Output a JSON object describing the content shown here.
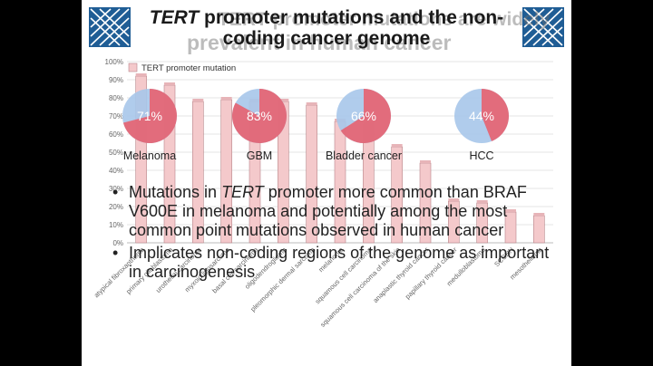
{
  "slide": {
    "title_italic": "TERT",
    "title_line1_rest": " promoter mutations and the non-",
    "title_line2": "coding cancer genome",
    "ghost_line1": "TERT promoter mutations are widely",
    "ghost_line2": "prevalent in human cancer",
    "bullets": [
      {
        "pre": "Mutations in ",
        "italic": "TERT",
        "post": " promoter more common than BRAF V600E in melanoma and potentially among the most common point mutations observed in human cancer"
      },
      {
        "pre": "Implicates non-coding regions of the genome as important in carcinogenesis",
        "italic": "",
        "post": ""
      }
    ],
    "bullet_symbol": "•"
  },
  "chart_data": {
    "type": "bar",
    "legend": "TERT promoter mutation",
    "categories": [
      "atypical fibroxanthoma",
      "primary glioblastoma",
      "urothelial carcinoma",
      "myxoid liposarcoma",
      "basal cell carcinoma",
      "oligodendroglioma",
      "pleomorphic dermal sarcoma",
      "melanoma",
      "squamous cell carcinoma",
      "squamous cell carcinoma of the skin",
      "anaplastic thyroid cancer",
      "papillary thyroid cancer",
      "medulloblastoma",
      "SCCHN",
      "mesothelioma"
    ],
    "values": [
      92,
      87,
      78,
      79,
      78,
      78,
      76,
      67,
      65,
      53,
      44,
      23,
      22,
      17,
      15
    ],
    "y_ticks": [
      "0%",
      "10%",
      "20%",
      "30%",
      "40%",
      "50%",
      "60%",
      "70%",
      "80%",
      "90%",
      "100%"
    ],
    "ylim": [
      0,
      100
    ],
    "colors": {
      "bar": "#f4c9cb",
      "bar_edge": "#b9868a",
      "pie_mut": "#e85f6c",
      "pie_rest": "#a7c7ea",
      "grid": "#dcdcdc"
    },
    "pies": [
      {
        "label": "Melanoma",
        "percent": 71,
        "percent_label": "71%"
      },
      {
        "label": "GBM",
        "percent": 83,
        "percent_label": "83%"
      },
      {
        "label": "Bladder cancer",
        "percent": 66,
        "percent_label": "66%"
      },
      {
        "label": "HCC",
        "percent": 44,
        "percent_label": "44%"
      }
    ]
  }
}
